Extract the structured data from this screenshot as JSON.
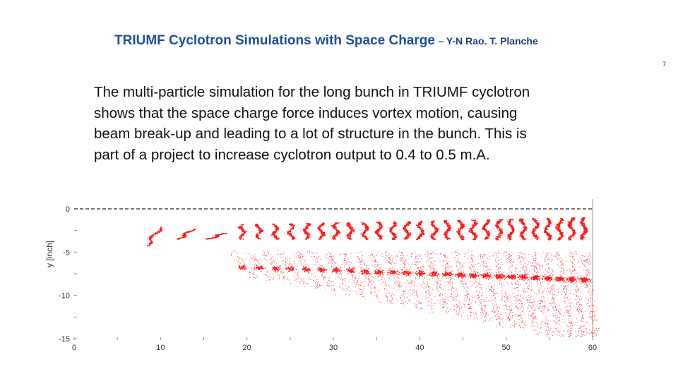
{
  "slide": {
    "title": "TRIUMF Cyclotron Simulations with Space Charge",
    "authors": "– Y-N Rao. T. Planche",
    "page_number": "7",
    "body": "The multi-particle simulation for the long bunch in TRIUMF cyclotron shows that the space charge force induces vortex motion, causing beam break-up and leading to a lot of structure in the bunch. This is part of a project to increase cyclotron output to 0.4 to 0.5 m.A."
  },
  "chart_data": {
    "type": "scatter",
    "ylabel": "y [inch]",
    "xlim": [
      0,
      60
    ],
    "ylim": [
      -15,
      0
    ],
    "x_ticks": [
      "0",
      "10",
      "20",
      "30",
      "40",
      "50",
      "60"
    ],
    "y_ticks": [
      "0",
      "-5",
      "-10",
      "-15"
    ],
    "reference_line_y": 0,
    "point_color": "#ff1a1a",
    "bunch_x": [
      10,
      13.7,
      17.3,
      19.5,
      21.4,
      23.3,
      25.1,
      26.9,
      28.6,
      30.3,
      32.0,
      33.7,
      35.3,
      36.9,
      38.5,
      40.1,
      41.7,
      43.2,
      44.7,
      46.2,
      47.7,
      49.2,
      50.6,
      52.0,
      53.4,
      54.8,
      56.2,
      57.6,
      59.0
    ]
  }
}
